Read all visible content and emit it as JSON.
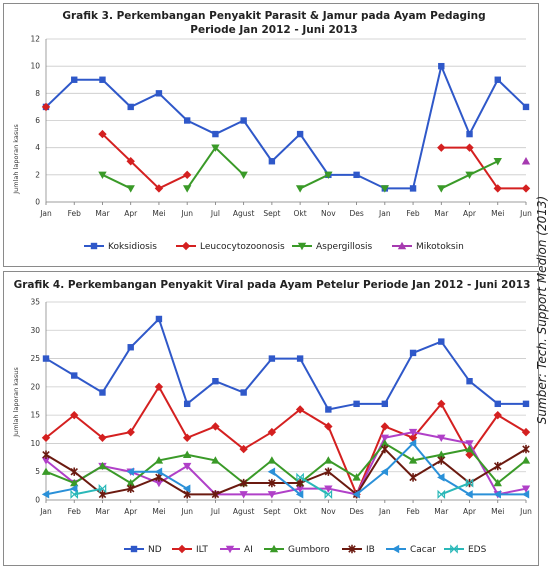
{
  "source_note": "Sumber: Tech. Support Medion (2013)",
  "chart_data": [
    {
      "type": "line",
      "title_line1": "Grafik 3. Perkembangan Penyakit Parasit & Jamur pada Ayam Pedaging",
      "title_line2": "Periode Jan 2012 - Juni 2013",
      "ylabel": "Jumlah laporan kasus",
      "xlabel": "",
      "ylim": [
        0,
        12
      ],
      "yticks": [
        0,
        2,
        4,
        6,
        8,
        10,
        12
      ],
      "grid": true,
      "legend_position": "bottom",
      "categories": [
        "Jan",
        "Feb",
        "Mar",
        "Apr",
        "Mei",
        "Jun",
        "Jul",
        "Agust",
        "Sept",
        "Okt",
        "Nov",
        "Des",
        "Jan",
        "Feb",
        "Mar",
        "Apr",
        "Mei",
        "Jun"
      ],
      "series": [
        {
          "name": "Koksidiosis",
          "color": "#2f58c9",
          "marker": "square",
          "values": [
            7,
            9,
            9,
            7,
            8,
            6,
            5,
            6,
            3,
            5,
            2,
            2,
            1,
            1,
            10,
            5,
            9,
            7
          ]
        },
        {
          "name": "Leucocytozoonosis",
          "color": "#d42020",
          "marker": "diamond",
          "values": [
            7,
            null,
            5,
            3,
            1,
            2,
            null,
            null,
            null,
            null,
            null,
            null,
            null,
            null,
            4,
            4,
            1,
            1
          ]
        },
        {
          "name": "Aspergillosis",
          "color": "#3a9a28",
          "marker": "triangle-down",
          "values": [
            null,
            null,
            2,
            1,
            null,
            1,
            4,
            2,
            null,
            1,
            2,
            null,
            1,
            null,
            1,
            2,
            3,
            null
          ]
        },
        {
          "name": "Mikotoksin",
          "color": "#a63ab0",
          "marker": "triangle-up",
          "values": [
            null,
            null,
            null,
            null,
            null,
            null,
            null,
            null,
            null,
            null,
            null,
            null,
            null,
            null,
            null,
            null,
            null,
            3
          ]
        }
      ]
    },
    {
      "type": "line",
      "title_line1": "Grafik 4. Perkembangan Penyakit Viral pada Ayam Petelur Periode Jan 2012 - Juni 2013",
      "title_line2": "",
      "ylabel": "Jumlah laporan kasus",
      "xlabel": "",
      "ylim": [
        0,
        35
      ],
      "yticks": [
        0,
        5,
        10,
        15,
        20,
        25,
        30,
        35
      ],
      "grid": true,
      "legend_position": "bottom",
      "categories": [
        "Jan",
        "Feb",
        "Mar",
        "Apr",
        "Mei",
        "Jun",
        "Jul",
        "Agust",
        "Sept",
        "Okt",
        "Nov",
        "Des",
        "Jan",
        "Feb",
        "Mar",
        "Apr",
        "Mei",
        "Jun"
      ],
      "series": [
        {
          "name": "ND",
          "color": "#2f58c9",
          "marker": "square",
          "values": [
            25,
            22,
            19,
            27,
            32,
            17,
            21,
            19,
            25,
            25,
            16,
            17,
            17,
            26,
            28,
            21,
            17,
            17
          ]
        },
        {
          "name": "ILT",
          "color": "#d42020",
          "marker": "diamond",
          "values": [
            11,
            15,
            11,
            12,
            20,
            11,
            13,
            9,
            12,
            16,
            13,
            1,
            13,
            11,
            17,
            8,
            15,
            12
          ]
        },
        {
          "name": "AI",
          "color": "#b040c8",
          "marker": "triangle-down",
          "values": [
            7,
            3,
            6,
            5,
            3,
            6,
            1,
            1,
            1,
            2,
            2,
            1,
            11,
            12,
            11,
            10,
            1,
            2
          ]
        },
        {
          "name": "Gumboro",
          "color": "#3a9a28",
          "marker": "triangle-up",
          "values": [
            5,
            3,
            6,
            3,
            7,
            8,
            7,
            3,
            7,
            3,
            7,
            4,
            10,
            7,
            8,
            9,
            3,
            7
          ]
        },
        {
          "name": "IB",
          "color": "#6b1a10",
          "marker": "star",
          "values": [
            8,
            5,
            1,
            2,
            4,
            1,
            1,
            3,
            3,
            3,
            5,
            1,
            9,
            4,
            7,
            3,
            6,
            9
          ]
        },
        {
          "name": "Cacar",
          "color": "#2a90d8",
          "marker": "triangle-left",
          "values": [
            1,
            2,
            null,
            5,
            5,
            2,
            null,
            null,
            5,
            1,
            null,
            1,
            5,
            10,
            4,
            1,
            1,
            1
          ]
        },
        {
          "name": "EDS",
          "color": "#2ab8b8",
          "marker": "bowtie",
          "values": [
            null,
            1,
            2,
            null,
            null,
            null,
            null,
            null,
            null,
            4,
            1,
            null,
            null,
            null,
            1,
            3,
            null,
            null
          ]
        }
      ]
    }
  ]
}
